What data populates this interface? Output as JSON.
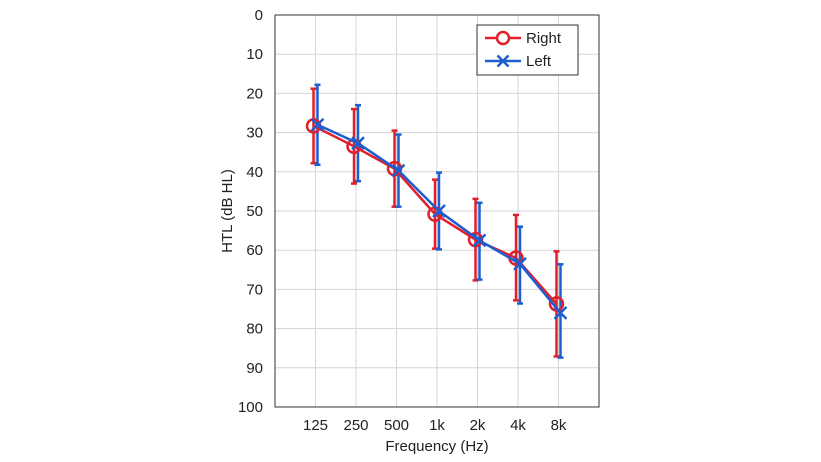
{
  "chart_data": {
    "type": "line",
    "categories": [
      "125",
      "250",
      "500",
      "1k",
      "2k",
      "4k",
      "8k"
    ],
    "xlabel": "Frequency (Hz)",
    "ylabel": "HTL (dB HL)",
    "ylim": [
      0,
      100
    ],
    "y_inverted": true,
    "yticks": [
      "0",
      "10",
      "20",
      "30",
      "40",
      "50",
      "60",
      "70",
      "80",
      "90",
      "100"
    ],
    "grid": true,
    "legend_position": "top-right",
    "series": [
      {
        "name": "Right",
        "color": "#e0202a",
        "marker": "circle",
        "values": [
          28.3,
          33.5,
          39.2,
          50.8,
          57.3,
          62.0,
          73.7
        ],
        "error_low": [
          18.8,
          24.0,
          29.5,
          42.0,
          46.9,
          51.0,
          60.3
        ],
        "error_high": [
          37.8,
          43.0,
          48.9,
          59.6,
          67.7,
          72.8,
          87.1
        ]
      },
      {
        "name": "Left",
        "color": "#1d5fd0",
        "marker": "x",
        "values": [
          28.0,
          32.7,
          39.7,
          50.0,
          57.5,
          63.5,
          76.0
        ],
        "error_low": [
          17.8,
          23.0,
          30.5,
          40.2,
          47.9,
          54.0,
          63.6
        ],
        "error_high": [
          38.2,
          42.4,
          48.9,
          59.8,
          67.5,
          73.6,
          87.4
        ]
      }
    ]
  }
}
